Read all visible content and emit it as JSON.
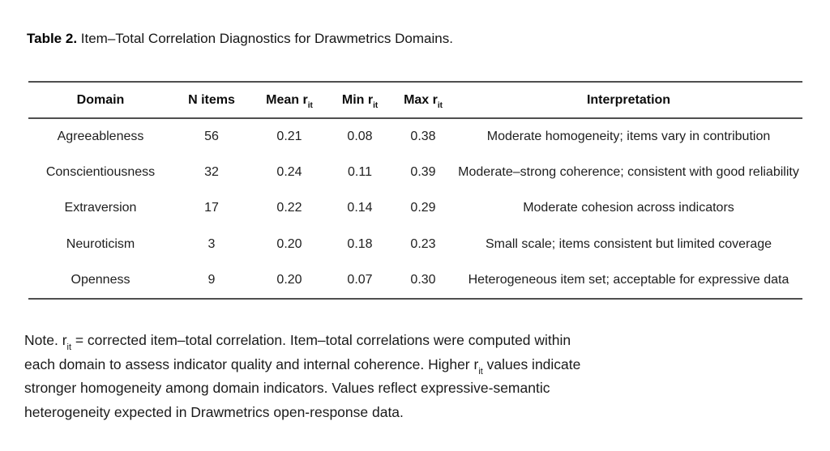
{
  "title": {
    "label": "Table 2.",
    "text": " Item–Total Correlation Diagnostics for Drawmetrics Domains."
  },
  "table": {
    "columns": [
      {
        "key": "domain",
        "label": "Domain"
      },
      {
        "key": "n_items",
        "label": "N items"
      },
      {
        "key": "mean_rit",
        "label": "Mean r",
        "sub": "it"
      },
      {
        "key": "min_rit",
        "label": "Min r",
        "sub": "it"
      },
      {
        "key": "max_rit",
        "label": "Max r",
        "sub": "it"
      },
      {
        "key": "interpretation",
        "label": "Interpretation"
      }
    ],
    "rows": [
      {
        "domain": "Agreeableness",
        "n_items": "56",
        "mean_rit": "0.21",
        "min_rit": "0.08",
        "max_rit": "0.38",
        "interpretation": "Moderate homogeneity; items vary in contribution"
      },
      {
        "domain": "Conscientiousness",
        "n_items": "32",
        "mean_rit": "0.24",
        "min_rit": "0.11",
        "max_rit": "0.39",
        "interpretation": "Moderate–strong coherence; consistent with good reliability"
      },
      {
        "domain": "Extraversion",
        "n_items": "17",
        "mean_rit": "0.22",
        "min_rit": "0.14",
        "max_rit": "0.29",
        "interpretation": "Moderate cohesion across indicators"
      },
      {
        "domain": "Neuroticism",
        "n_items": "3",
        "mean_rit": "0.20",
        "min_rit": "0.18",
        "max_rit": "0.23",
        "interpretation": "Small scale; items consistent but limited coverage"
      },
      {
        "domain": "Openness",
        "n_items": "9",
        "mean_rit": "0.20",
        "min_rit": "0.07",
        "max_rit": "0.30",
        "interpretation": "Heterogeneous item set; acceptable for expressive data"
      }
    ]
  },
  "note": {
    "lines": [
      [
        {
          "t": "Note. r"
        },
        {
          "sub": "it"
        },
        {
          "t": " = corrected item–total correlation. Item–total correlations were computed within"
        }
      ],
      [
        {
          "t": "each domain to assess indicator quality and internal coherence. Higher r"
        },
        {
          "sub": "it"
        },
        {
          "t": " values indicate"
        }
      ],
      [
        {
          "t": "stronger homogeneity among domain indicators. Values reflect expressive-semantic"
        }
      ],
      [
        {
          "t": "heterogeneity expected in Drawmetrics open-response data."
        }
      ]
    ]
  },
  "colors": {
    "background": "#ffffff",
    "text": "#1b1b1b",
    "rule": "#4f4f4f"
  }
}
